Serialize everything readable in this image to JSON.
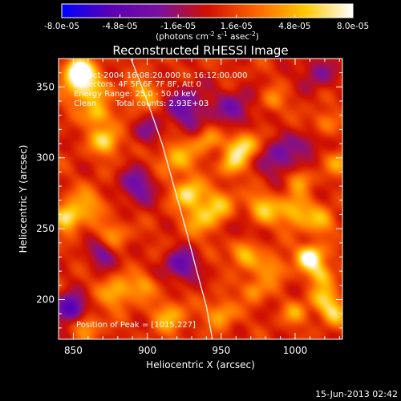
{
  "chart_data": {
    "type": "heatmap",
    "title": "Reconstructed RHESSI Image",
    "xlabel": "Heliocentric X (arcsec)",
    "ylabel": "Heliocentric Y (arcsec)",
    "xlim": [
      840,
      1032
    ],
    "ylim": [
      172,
      370
    ],
    "xticks": [
      850,
      900,
      950,
      1000
    ],
    "yticks": [
      200,
      250,
      300,
      350
    ],
    "colorbar": {
      "min": -8e-05,
      "max": 8e-05,
      "tick_labels": [
        "-8.0e-05",
        "-4.8e-05",
        "-1.6e-05",
        "1.6e-05",
        "4.8e-05",
        "8.0e-05"
      ],
      "unit_text": "(photons cm",
      "unit_sup1": "-2",
      "unit_mid": " s",
      "unit_sup2": "-1",
      "unit_mid2": " asec",
      "unit_sup3": "-2",
      "unit_end": ")",
      "colors": [
        "#0000ff",
        "#5a00b4",
        "#7a10a0",
        "#d01000",
        "#ff6400",
        "#ffc800",
        "#ffffff"
      ]
    },
    "annotations": [
      "9-Oct-2004 16:08:20.000 to 16:12:00.000",
      "Detectors: 4F 5F 6F 7F 8F, Att 0",
      "Energy Range: 25.0 - 50.0 keV",
      "Clean",
      "Total counts: 2.93E+03"
    ],
    "peak_label": "Position of Peak = [1015,227]",
    "limb_curve": [
      [
        889,
        370
      ],
      [
        900,
        340
      ],
      [
        910,
        310
      ],
      [
        918,
        280
      ],
      [
        926,
        250
      ],
      [
        933,
        222
      ],
      [
        940,
        195
      ],
      [
        944,
        172
      ]
    ],
    "sources": [
      [
        853,
        362,
        1.0,
        6
      ],
      [
        858,
        350,
        0.8,
        9
      ],
      [
        872,
        312,
        0.7,
        7
      ],
      [
        866,
        330,
        0.6,
        6
      ],
      [
        897,
        345,
        0.45,
        8
      ],
      [
        920,
        300,
        0.5,
        9
      ],
      [
        928,
        275,
        0.7,
        7
      ],
      [
        940,
        312,
        0.45,
        6
      ],
      [
        965,
        308,
        0.8,
        7
      ],
      [
        957,
        295,
        0.5,
        6
      ],
      [
        846,
        258,
        0.85,
        6
      ],
      [
        860,
        268,
        0.45,
        8
      ],
      [
        877,
        246,
        0.4,
        7
      ],
      [
        880,
        205,
        0.55,
        8
      ],
      [
        898,
        210,
        0.4,
        6
      ],
      [
        915,
        188,
        0.5,
        8
      ],
      [
        938,
        258,
        0.55,
        9
      ],
      [
        950,
        268,
        0.35,
        8
      ],
      [
        978,
        264,
        0.55,
        8
      ],
      [
        1000,
        262,
        0.6,
        8
      ],
      [
        1018,
        255,
        0.45,
        7
      ],
      [
        1003,
        285,
        0.45,
        6
      ],
      [
        1010,
        230,
        1.0,
        6
      ],
      [
        1018,
        218,
        0.6,
        6
      ],
      [
        985,
        222,
        0.45,
        7
      ],
      [
        965,
        232,
        0.55,
        7
      ],
      [
        972,
        207,
        0.45,
        6
      ],
      [
        1020,
        200,
        0.55,
        7
      ],
      [
        1027,
        190,
        0.5,
        6
      ],
      [
        1030,
        297,
        0.45,
        6
      ],
      [
        950,
        190,
        0.5,
        7
      ],
      [
        1000,
        190,
        0.4,
        6
      ],
      [
        858,
        182,
        0.45,
        7
      ],
      [
        985,
        340,
        0.35,
        6
      ],
      [
        1020,
        325,
        0.35,
        6
      ],
      [
        927,
        335,
        -0.5,
        11
      ],
      [
        990,
        300,
        -0.5,
        10
      ],
      [
        960,
        335,
        -0.45,
        9
      ],
      [
        893,
        280,
        -0.5,
        9
      ],
      [
        1015,
        360,
        -0.4,
        8
      ],
      [
        848,
        193,
        -0.9,
        7
      ],
      [
        923,
        224,
        -0.6,
        8
      ],
      [
        870,
        232,
        -0.45,
        7
      ],
      [
        962,
        250,
        -0.3,
        7
      ],
      [
        1010,
        310,
        -0.35,
        6
      ],
      [
        900,
        318,
        -0.35,
        7
      ]
    ]
  },
  "footer": {
    "date": "15-Jun-2013 02:42"
  }
}
